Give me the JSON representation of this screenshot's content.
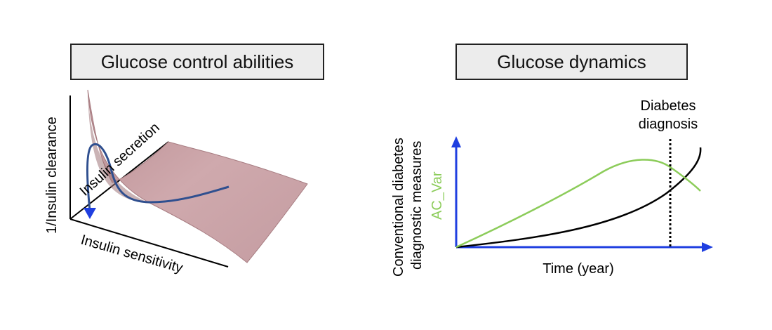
{
  "left_panel": {
    "title": "Glucose control abilities",
    "axis_vertical": "1/Insulin clearance",
    "axis_depth": "Insulin secretion",
    "axis_horizontal": "Insulin sensitivity"
  },
  "right_panel": {
    "title": "Glucose dynamics",
    "ylabel_line1": "Conventional diabetes",
    "ylabel_line2": "diagnostic measures",
    "ylabel_green": "AC_Var",
    "xlabel": "Time (year)",
    "annotation_line1": "Diabetes",
    "annotation_line2": "diagnosis"
  },
  "colors": {
    "surface": "#caa3a7",
    "surface_edge": "#a77c81",
    "trajectory": "#2f4f8f",
    "arrow_blue": "#1f3fe0",
    "green_curve": "#8ccc5a",
    "black_curve": "#000000"
  }
}
